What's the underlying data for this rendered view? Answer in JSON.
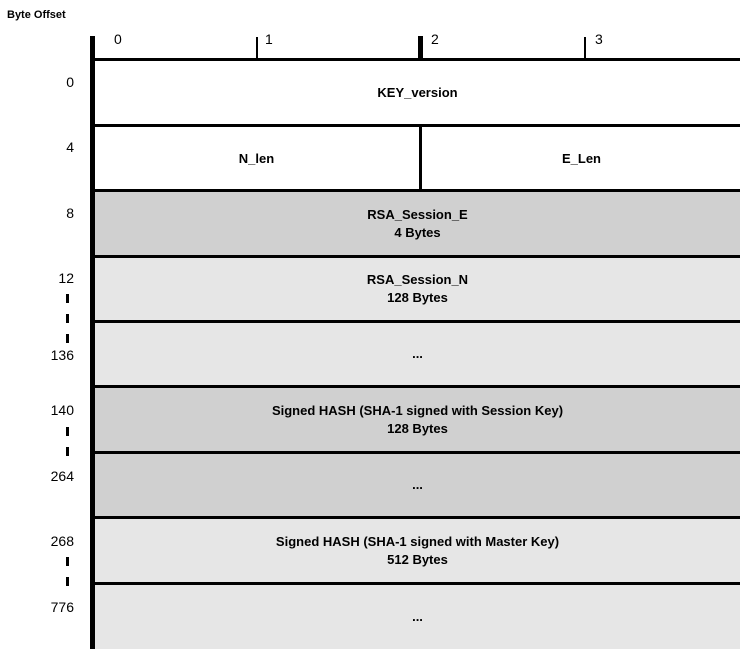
{
  "header": "Byte Offset",
  "columns": [
    "0",
    "1",
    "2",
    "3"
  ],
  "offsets": [
    "0",
    "4",
    "8",
    "12",
    "136",
    "140",
    "264",
    "268",
    "776"
  ],
  "rows": {
    "key_version": "KEY_version",
    "n_len": "N_len",
    "e_len": "E_Len",
    "rsa_e_name": "RSA_Session_E",
    "rsa_e_size": "4 Bytes",
    "rsa_n_name": "RSA_Session_N",
    "rsa_n_size": "128 Bytes",
    "rsa_n_cont": "...",
    "hash_session_name": "Signed HASH (SHA-1 signed with Session Key)",
    "hash_session_size": "128 Bytes",
    "hash_session_cont": "...",
    "hash_master_name": "Signed HASH (SHA-1 signed with Master Key)",
    "hash_master_size": "512 Bytes",
    "hash_master_cont": "..."
  },
  "colors": {
    "dark_fill": "#d0d0d0",
    "light_fill": "#e6e6e6",
    "line": "#000000"
  }
}
